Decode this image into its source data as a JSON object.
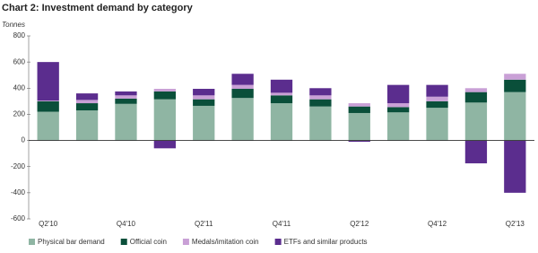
{
  "chart_data": {
    "type": "stacked_bar",
    "title": "Chart 2: Investment demand by category",
    "y_label": "Tonnes",
    "categories": [
      "Q2'10",
      null,
      "Q4'10",
      null,
      "Q2'11",
      null,
      "Q4'11",
      null,
      "Q2'12",
      null,
      "Q4'12",
      null,
      "Q2'13"
    ],
    "series": [
      {
        "name": "Physical bar demand",
        "color": "#8fb5a3",
        "values": [
          220,
          230,
          280,
          315,
          265,
          325,
          285,
          260,
          210,
          215,
          250,
          290,
          370
        ]
      },
      {
        "name": "Official coin",
        "color": "#0a4f3a",
        "values": [
          80,
          55,
          40,
          60,
          50,
          70,
          60,
          55,
          50,
          40,
          50,
          80,
          95
        ]
      },
      {
        "name": "Medals/imitation coin",
        "color": "#c9a0d6",
        "values": [
          5,
          25,
          25,
          20,
          30,
          30,
          20,
          30,
          25,
          30,
          35,
          30,
          45
        ]
      },
      {
        "name": "ETFs and similar products",
        "color": "#5b2d8e",
        "values": [
          295,
          50,
          30,
          -60,
          50,
          85,
          100,
          55,
          -10,
          140,
          90,
          -175,
          -400
        ]
      }
    ],
    "ylim": [
      -600,
      800
    ],
    "yticks": [
      -600,
      -400,
      -200,
      0,
      200,
      400,
      600,
      800
    ],
    "grid": false
  }
}
